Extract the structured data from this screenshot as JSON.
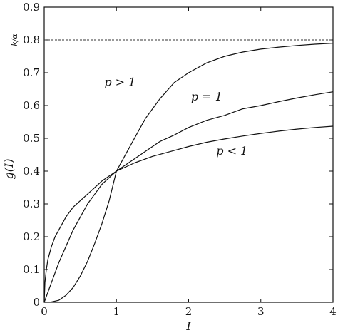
{
  "chart_data": {
    "type": "line",
    "xlabel": "I",
    "ylabel": "g(I)",
    "xlim": [
      0,
      4
    ],
    "ylim": [
      0,
      0.9
    ],
    "xticks": [
      "0",
      "1",
      "2",
      "3",
      "4"
    ],
    "yticks": [
      "0",
      "0.1",
      "0.2",
      "0.3",
      "0.4",
      "0.5",
      "0.6",
      "0.7",
      "0.8",
      "0.9"
    ],
    "grid": false,
    "asymptote": {
      "y": 0.8,
      "label": "k/α",
      "style": "dashed"
    },
    "series": [
      {
        "name": "p > 1",
        "x": [
          0,
          0.1,
          0.2,
          0.3,
          0.4,
          0.5,
          0.6,
          0.7,
          0.8,
          0.9,
          1.0,
          1.1,
          1.2,
          1.3,
          1.4,
          1.5,
          1.6,
          1.8,
          2.0,
          2.25,
          2.5,
          2.75,
          3.0,
          3.25,
          3.5,
          3.75,
          4.0
        ],
        "y": [
          0,
          0.001,
          0.006,
          0.021,
          0.045,
          0.08,
          0.125,
          0.18,
          0.24,
          0.31,
          0.4,
          0.44,
          0.48,
          0.52,
          0.56,
          0.59,
          0.62,
          0.67,
          0.7,
          0.73,
          0.75,
          0.763,
          0.772,
          0.778,
          0.783,
          0.787,
          0.79
        ]
      },
      {
        "name": "p = 1",
        "x": [
          0,
          0.1,
          0.2,
          0.3,
          0.4,
          0.5,
          0.6,
          0.7,
          0.8,
          0.9,
          1.0,
          1.2,
          1.4,
          1.6,
          1.8,
          2.0,
          2.25,
          2.5,
          2.75,
          3.0,
          3.25,
          3.5,
          3.75,
          4.0
        ],
        "y": [
          0,
          0.06,
          0.12,
          0.17,
          0.22,
          0.26,
          0.3,
          0.33,
          0.36,
          0.38,
          0.4,
          0.43,
          0.46,
          0.49,
          0.51,
          0.533,
          0.555,
          0.57,
          0.59,
          0.6,
          0.612,
          0.623,
          0.633,
          0.642
        ]
      },
      {
        "name": "p < 1",
        "x": [
          0,
          0.01,
          0.03,
          0.05,
          0.1,
          0.15,
          0.2,
          0.3,
          0.4,
          0.5,
          0.6,
          0.7,
          0.8,
          0.9,
          1.0,
          1.25,
          1.5,
          1.75,
          2.0,
          2.25,
          2.5,
          2.75,
          3.0,
          3.25,
          3.5,
          3.75,
          4.0
        ],
        "y": [
          0,
          0.06,
          0.1,
          0.13,
          0.17,
          0.2,
          0.22,
          0.26,
          0.29,
          0.31,
          0.33,
          0.35,
          0.37,
          0.385,
          0.4,
          0.425,
          0.445,
          0.46,
          0.475,
          0.488,
          0.498,
          0.507,
          0.515,
          0.522,
          0.528,
          0.533,
          0.537
        ]
      }
    ],
    "annotations": [
      {
        "text": "p > 1",
        "x": 1.05,
        "y": 0.66,
        "series": "p > 1"
      },
      {
        "text": "p = 1",
        "x": 2.25,
        "y": 0.615,
        "series": "p = 1"
      },
      {
        "text": "p < 1",
        "x": 2.6,
        "y": 0.45,
        "series": "p < 1"
      }
    ]
  }
}
